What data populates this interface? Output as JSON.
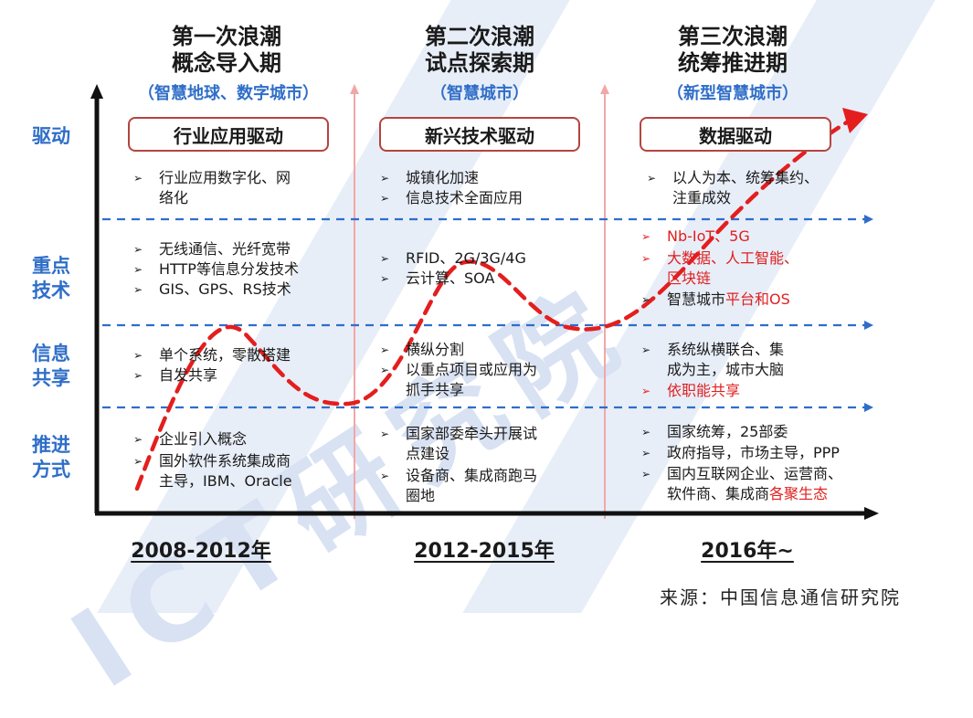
{
  "waves": [
    {
      "title_line1": "第一次浪潮",
      "title_line2": "概念导入期",
      "subtitle": "（智慧地球、数字城市）",
      "driver": "行业应用驱动"
    },
    {
      "title_line1": "第二次浪潮",
      "title_line2": "试点探索期",
      "subtitle": "（智慧城市）",
      "driver": "新兴技术驱动"
    },
    {
      "title_line1": "第三次浪潮",
      "title_line2": "统筹推进期",
      "subtitle": "（新型智慧城市）",
      "driver": "数据驱动"
    }
  ],
  "row_labels": {
    "drive": "驱动",
    "tech_line1": "重点",
    "tech_line2": "技术",
    "info_line1": "信息",
    "info_line2": "共享",
    "promo_line1": "推进",
    "promo_line2": "方式"
  },
  "bullet_marker": "➢",
  "cells": {
    "c1_drive": [
      "行业应用数字化、网",
      "络化"
    ],
    "c2_drive": [
      "城镇化加速",
      "信息技术全面应用"
    ],
    "c3_drive": [
      "以人为本、统筹集约、",
      "注重成效"
    ],
    "c1_tech": [
      "无线通信、光纤宽带",
      "HTTP等信息分发技术",
      "GIS、GPS、RS技术"
    ],
    "c2_tech": [
      "RFID、2G/3G/4G",
      "云计算、SOA"
    ],
    "c3_tech": [
      "Nb-IoT、5G",
      "大数据、人工智能、",
      "区块链",
      "智慧城市",
      "平台和OS"
    ],
    "c1_info": [
      "单个系统，零散搭建",
      "自发共享"
    ],
    "c2_info": [
      "横纵分割",
      "以重点项目或应用为",
      "抓手共享"
    ],
    "c3_info": [
      "系统纵横联合、集",
      "成为主，城市大脑",
      "依职能共享"
    ],
    "c1_promo": [
      "企业引入概念",
      "国外软件系统集成商",
      "主导，IBM、Oracle"
    ],
    "c2_promo": [
      "国家部委牵头开展试",
      "点建设",
      "设备商、集成商跑马",
      "圈地"
    ],
    "c3_promo": [
      "国家统筹，25部委",
      "政府指导，市场主导，PPP",
      "国内互联网企业、运营商、",
      "软件商、集成商",
      "各聚生态"
    ]
  },
  "periods": [
    "2008-2012年",
    "2012-2015年",
    "2016年~"
  ],
  "source": "来源：中国信息通信研究院",
  "watermark": "ICT研究院",
  "colors": {
    "accent_blue": "#2f6ec8",
    "curve_red": "#e41e1e",
    "box_border": "#b5443f",
    "divider_pink": "#f2a7a7",
    "dash_blue": "#2f6ec8"
  }
}
